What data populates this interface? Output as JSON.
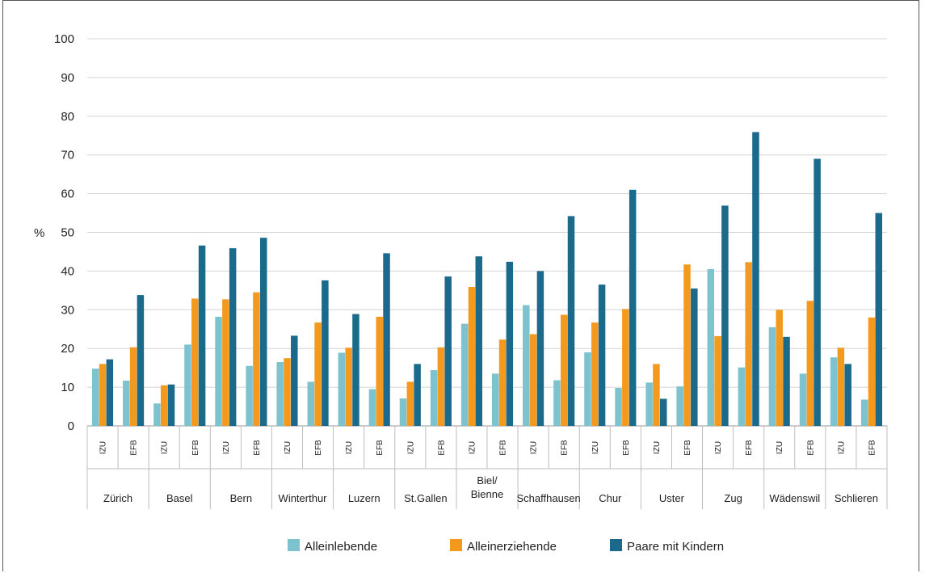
{
  "chart_data": {
    "type": "bar",
    "ylabel": "%",
    "ylim": [
      0,
      100
    ],
    "yticks": [
      0,
      10,
      20,
      30,
      40,
      50,
      60,
      70,
      80,
      90,
      100
    ],
    "grid": true,
    "legend_position": "bottom",
    "colors": [
      "#7dc3cf",
      "#f39a1e",
      "#1b6a8c"
    ],
    "series_names": [
      "Alleinlebende",
      "Alleinerziehende",
      "Paare mit Kindern"
    ],
    "groups": [
      {
        "city": "Zürich",
        "bars": [
          {
            "label": "IZU",
            "values": [
              14.8,
              16.0,
              17.2
            ]
          },
          {
            "label": "EFB",
            "values": [
              11.7,
              20.3,
              33.8
            ]
          }
        ]
      },
      {
        "city": "Basel",
        "bars": [
          {
            "label": "IZU",
            "values": [
              5.8,
              10.5,
              10.7
            ]
          },
          {
            "label": "EFB",
            "values": [
              21.0,
              32.9,
              46.6
            ]
          }
        ]
      },
      {
        "city": "Bern",
        "bars": [
          {
            "label": "IZU",
            "values": [
              28.2,
              32.7,
              45.9
            ]
          },
          {
            "label": "EFB",
            "values": [
              15.5,
              34.5,
              48.6
            ]
          }
        ]
      },
      {
        "city": "Winterthur",
        "bars": [
          {
            "label": "IZU",
            "values": [
              16.5,
              17.5,
              23.3
            ]
          },
          {
            "label": "EFB",
            "values": [
              11.4,
              26.7,
              37.6
            ]
          }
        ]
      },
      {
        "city": "Luzern",
        "bars": [
          {
            "label": "IZU",
            "values": [
              18.9,
              20.2,
              28.9
            ]
          },
          {
            "label": "EFB",
            "values": [
              9.5,
              28.2,
              44.6
            ]
          }
        ]
      },
      {
        "city": "St.Gallen",
        "bars": [
          {
            "label": "IZU",
            "values": [
              7.1,
              11.4,
              16.0
            ]
          },
          {
            "label": "EFB",
            "values": [
              14.4,
              20.3,
              38.6
            ]
          }
        ]
      },
      {
        "city": "Biel/\nBienne",
        "bars": [
          {
            "label": "IZU",
            "values": [
              26.4,
              35.9,
              43.8
            ]
          },
          {
            "label": "EFB",
            "values": [
              13.5,
              22.3,
              42.4
            ]
          }
        ]
      },
      {
        "city": "Schaffhausen",
        "bars": [
          {
            "label": "IZU",
            "values": [
              31.2,
              23.7,
              40.0
            ]
          },
          {
            "label": "EFB",
            "values": [
              11.8,
              28.7,
              54.2
            ]
          }
        ]
      },
      {
        "city": "Chur",
        "bars": [
          {
            "label": "IZU",
            "values": [
              19.0,
              26.7,
              36.5
            ]
          },
          {
            "label": "EFB",
            "values": [
              9.8,
              30.2,
              61.0
            ]
          }
        ]
      },
      {
        "city": "Uster",
        "bars": [
          {
            "label": "IZU",
            "values": [
              11.2,
              16.0,
              7.0
            ]
          },
          {
            "label": "EFB",
            "values": [
              10.2,
              41.7,
              35.5
            ]
          }
        ]
      },
      {
        "city": "Zug",
        "bars": [
          {
            "label": "IZU",
            "values": [
              40.5,
              23.2,
              56.9
            ]
          },
          {
            "label": "EFB",
            "values": [
              15.1,
              42.3,
              75.9
            ]
          }
        ]
      },
      {
        "city": "Wädenswil",
        "bars": [
          {
            "label": "IZU",
            "values": [
              25.5,
              30.0,
              23.0
            ]
          },
          {
            "label": "EFB",
            "values": [
              13.5,
              32.3,
              69.0
            ]
          }
        ]
      },
      {
        "city": "Schlieren",
        "bars": [
          {
            "label": "IZU",
            "values": [
              17.7,
              20.2,
              16.0
            ]
          },
          {
            "label": "EFB",
            "values": [
              6.8,
              28.0,
              55.0
            ]
          }
        ]
      }
    ]
  }
}
